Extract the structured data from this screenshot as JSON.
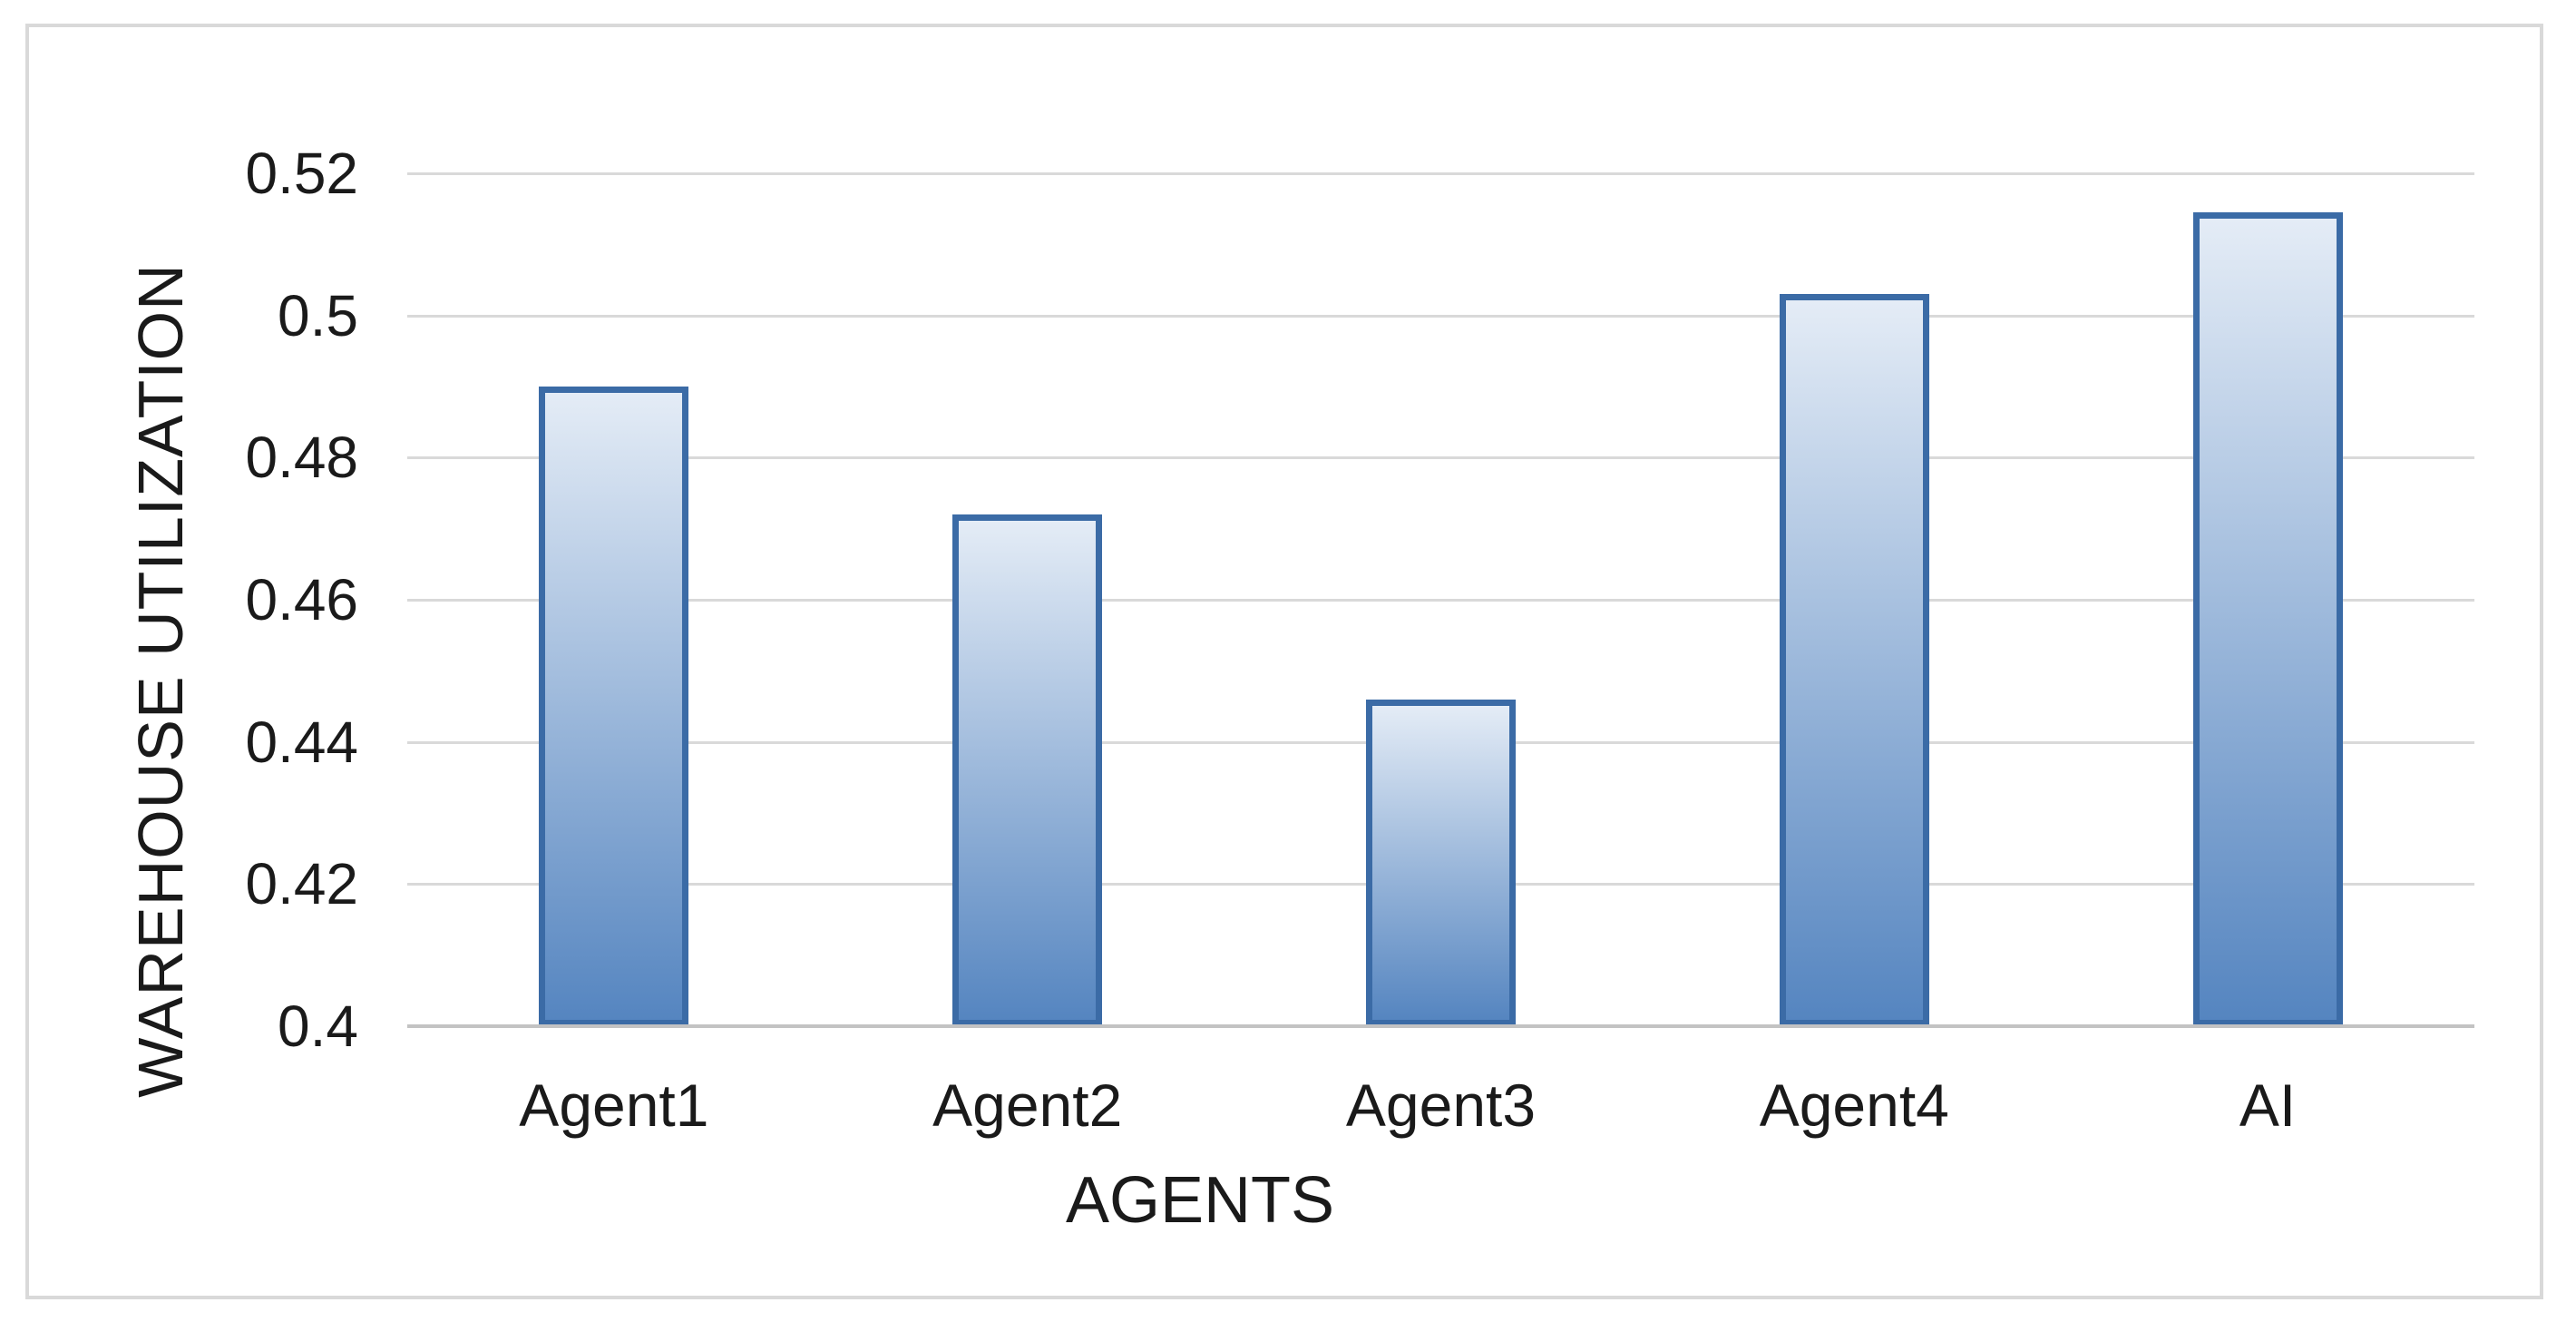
{
  "figure": {
    "background_color": "#ffffff",
    "frame_border_color": "#d9d9d9"
  },
  "chart_data": {
    "type": "bar",
    "title": "",
    "categories": [
      "Agent1",
      "Agent2",
      "Agent3",
      "Agent4",
      "AI"
    ],
    "values": [
      0.49,
      0.472,
      0.446,
      0.503,
      0.5145
    ],
    "xlabel": "AGENTS",
    "ylabel": "WAREHOUSE UTILIZATION",
    "ylim": [
      0.4,
      0.52
    ],
    "ytick_values": [
      0.4,
      0.42,
      0.44,
      0.46,
      0.48,
      0.5,
      0.52
    ],
    "ytick_labels": [
      "0.4",
      "0.42",
      "0.44",
      "0.46",
      "0.48",
      "0.5",
      "0.52"
    ],
    "grid": "horizontal",
    "legend_position": "none",
    "colors": {
      "bar_gradient_top": "#e4ecf6",
      "bar_gradient_bottom": "#5585c0",
      "bar_border": "#3b6ba6",
      "gridline": "#d9d9d9",
      "axis_line": "#c3c3c3",
      "text": "#1a1a1a"
    }
  }
}
